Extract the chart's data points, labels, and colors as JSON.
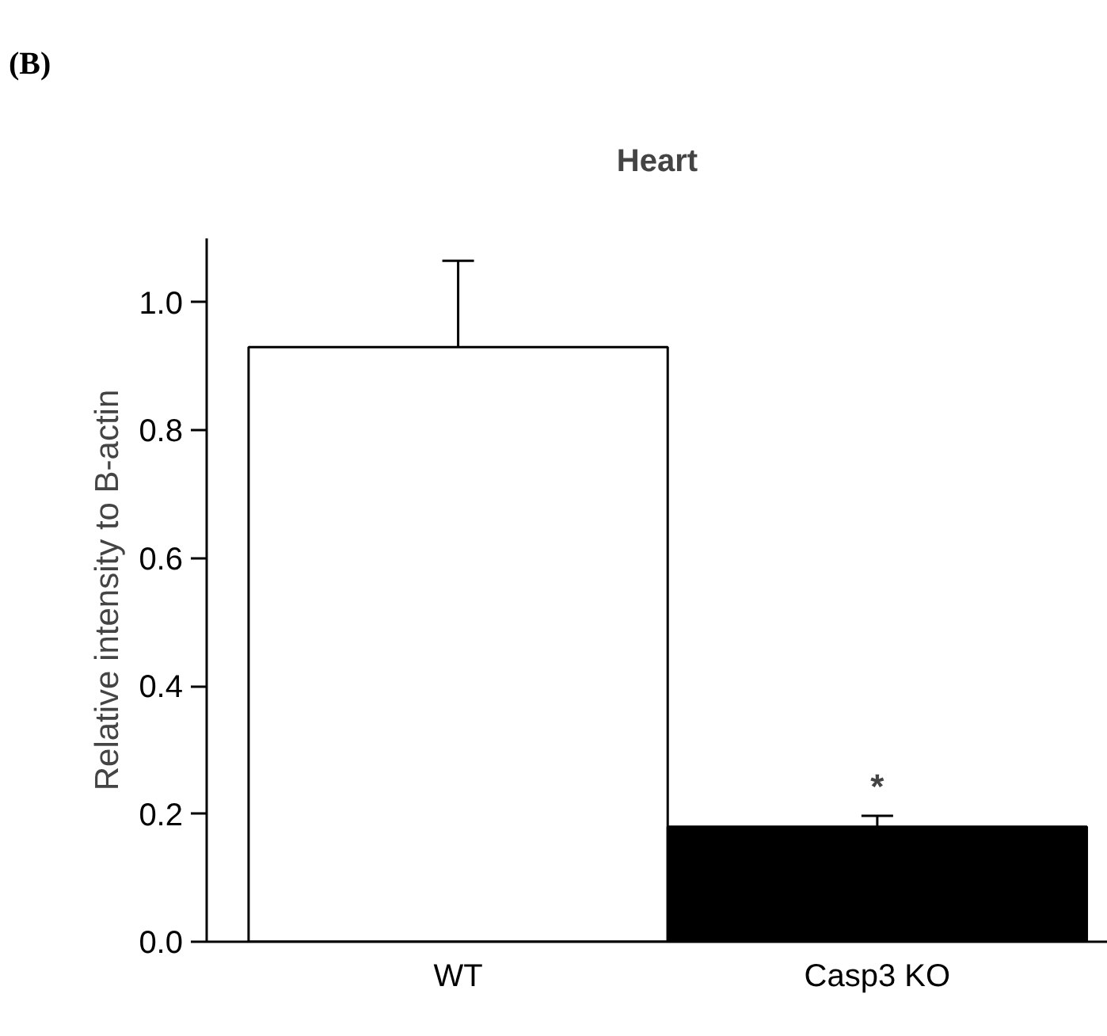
{
  "chart_data": {
    "type": "bar",
    "title": "Heart",
    "ylabel": "Relative intensity to B-actin",
    "categories": [
      "WT",
      "Casp3 KO"
    ],
    "values": [
      0.93,
      0.18
    ],
    "colors": [
      "#ffffff",
      "#000000"
    ],
    "errors": [
      [
        0.93,
        1.065
      ],
      [
        0.18,
        0.197
      ]
    ],
    "ylim": [
      0,
      1.1
    ],
    "yticks": [
      {
        "value": 0,
        "label": "0.0"
      },
      0.2,
      0.4,
      0.6,
      0.8,
      {
        "value": 1,
        "label": "1.0"
      }
    ],
    "grid": false,
    "annotations": [
      "(B)",
      "*"
    ]
  }
}
